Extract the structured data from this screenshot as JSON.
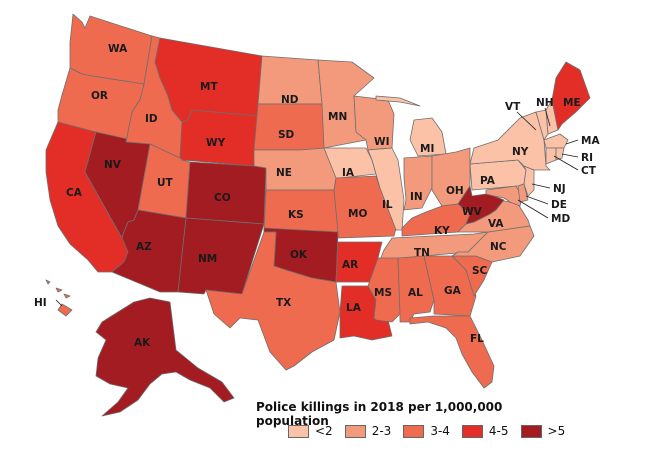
{
  "legend": {
    "title": "Police killings in 2018 per 1,000,000 population",
    "items": [
      {
        "label": "<2",
        "color": "#fbc2a8"
      },
      {
        "label": "2-3",
        "color": "#f49a7c"
      },
      {
        "label": "3-4",
        "color": "#ef6b4f"
      },
      {
        "label": "4-5",
        "color": "#e22e27"
      },
      {
        "label": ">5",
        "color": "#a31c22"
      }
    ]
  },
  "states": [
    {
      "abbr": "WA",
      "bin": "3-4"
    },
    {
      "abbr": "OR",
      "bin": "3-4"
    },
    {
      "abbr": "CA",
      "bin": "4-5"
    },
    {
      "abbr": "NV",
      "bin": ">5"
    },
    {
      "abbr": "ID",
      "bin": "3-4"
    },
    {
      "abbr": "MT",
      "bin": "4-5"
    },
    {
      "abbr": "WY",
      "bin": "4-5"
    },
    {
      "abbr": "UT",
      "bin": "3-4"
    },
    {
      "abbr": "AZ",
      "bin": ">5"
    },
    {
      "abbr": "CO",
      "bin": ">5"
    },
    {
      "abbr": "NM",
      "bin": ">5"
    },
    {
      "abbr": "ND",
      "bin": "2-3"
    },
    {
      "abbr": "SD",
      "bin": "3-4"
    },
    {
      "abbr": "NE",
      "bin": "2-3"
    },
    {
      "abbr": "KS",
      "bin": "3-4"
    },
    {
      "abbr": "OK",
      "bin": ">5"
    },
    {
      "abbr": "TX",
      "bin": "3-4"
    },
    {
      "abbr": "MN",
      "bin": "2-3"
    },
    {
      "abbr": "IA",
      "bin": "<2"
    },
    {
      "abbr": "MO",
      "bin": "3-4"
    },
    {
      "abbr": "AR",
      "bin": "4-5"
    },
    {
      "abbr": "LA",
      "bin": "4-5"
    },
    {
      "abbr": "WI",
      "bin": "2-3"
    },
    {
      "abbr": "IL",
      "bin": "<2"
    },
    {
      "abbr": "MI",
      "bin": "<2"
    },
    {
      "abbr": "IN",
      "bin": "2-3"
    },
    {
      "abbr": "OH",
      "bin": "2-3"
    },
    {
      "abbr": "KY",
      "bin": "3-4"
    },
    {
      "abbr": "TN",
      "bin": "2-3"
    },
    {
      "abbr": "MS",
      "bin": "3-4"
    },
    {
      "abbr": "AL",
      "bin": "3-4"
    },
    {
      "abbr": "GA",
      "bin": "3-4"
    },
    {
      "abbr": "FL",
      "bin": "3-4"
    },
    {
      "abbr": "SC",
      "bin": "3-4"
    },
    {
      "abbr": "NC",
      "bin": "2-3"
    },
    {
      "abbr": "VA",
      "bin": "2-3"
    },
    {
      "abbr": "WV",
      "bin": ">5"
    },
    {
      "abbr": "PA",
      "bin": "<2"
    },
    {
      "abbr": "NY",
      "bin": "<2"
    },
    {
      "abbr": "VT",
      "bin": "<2"
    },
    {
      "abbr": "NH",
      "bin": "<2"
    },
    {
      "abbr": "ME",
      "bin": "4-5"
    },
    {
      "abbr": "MA",
      "bin": "<2"
    },
    {
      "abbr": "RI",
      "bin": "<2"
    },
    {
      "abbr": "CT",
      "bin": "<2"
    },
    {
      "abbr": "NJ",
      "bin": "<2"
    },
    {
      "abbr": "DE",
      "bin": "2-3"
    },
    {
      "abbr": "MD",
      "bin": "2-3"
    },
    {
      "abbr": "AK",
      "bin": ">5"
    },
    {
      "abbr": "HI",
      "bin": "3-4"
    }
  ]
}
